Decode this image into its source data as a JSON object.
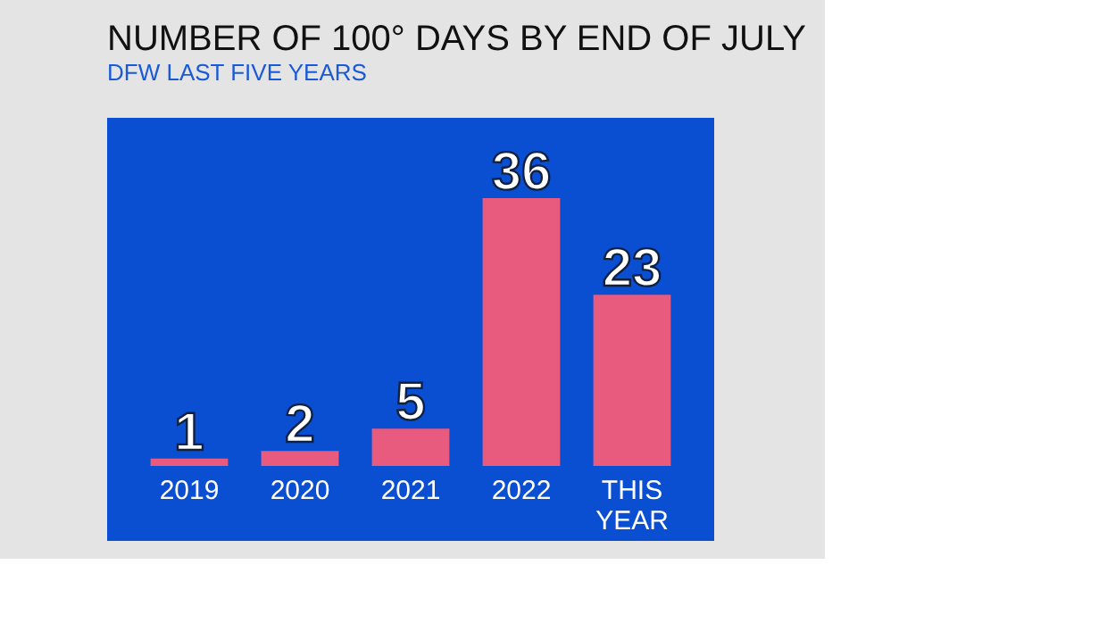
{
  "chart_data": {
    "type": "bar",
    "title": "NUMBER OF 100° DAYS BY END OF JULY",
    "subtitle": "DFW LAST FIVE YEARS",
    "categories": [
      "2019",
      "2020",
      "2021",
      "2022",
      "THIS YEAR"
    ],
    "values": [
      1,
      2,
      5,
      36,
      23
    ],
    "color": "#e95a7f",
    "data_labels": true
  }
}
